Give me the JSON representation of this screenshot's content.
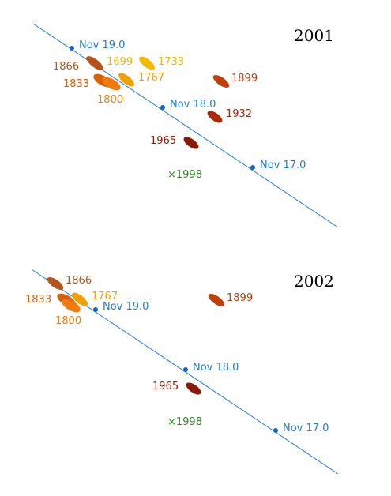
{
  "colors": {
    "orbit": "#1f7bd6",
    "marker": "#1565c0",
    "y1998": "#2e8b20"
  },
  "panels": [
    {
      "year": "2001",
      "dates": [
        "Nov 19.0",
        "Nov 18.0",
        "Nov 17.0"
      ],
      "marker_1998": "×1998",
      "trails": [
        {
          "label": "1866",
          "color": "#b5541a"
        },
        {
          "label": "1699",
          "color": "#f5b800"
        },
        {
          "label": "1733",
          "color": "#f5b800"
        },
        {
          "label": "1767",
          "color": "#f0a000"
        },
        {
          "label": "1833",
          "color": "#d8600a"
        },
        {
          "label": "1800",
          "color": "#ef7a10"
        },
        {
          "label": "1899",
          "color": "#c0400c"
        },
        {
          "label": "1932",
          "color": "#a82a0a"
        },
        {
          "label": "1965",
          "color": "#8a1a08"
        }
      ]
    },
    {
      "year": "2002",
      "dates": [
        "Nov 19.0",
        "Nov 18.0",
        "Nov 17.0"
      ],
      "marker_1998": "×1998",
      "trails": [
        {
          "label": "1866",
          "color": "#b5541a"
        },
        {
          "label": "1767",
          "color": "#f0a000"
        },
        {
          "label": "1833",
          "color": "#d8600a"
        },
        {
          "label": "1800",
          "color": "#ef7a10"
        },
        {
          "label": "1899",
          "color": "#c0400c"
        },
        {
          "label": "1965",
          "color": "#8a1a08"
        }
      ]
    }
  ]
}
